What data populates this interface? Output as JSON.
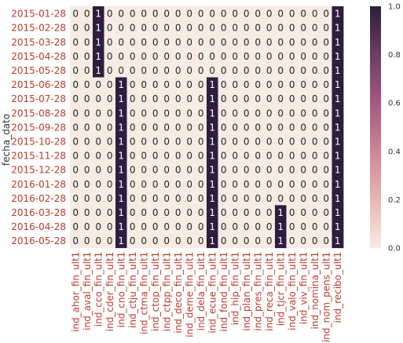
{
  "chart_data": {
    "type": "heatmap",
    "ylabel": "fecha_dato",
    "xlabel": "",
    "rows": [
      "2015-01-28",
      "2015-02-28",
      "2015-03-28",
      "2015-04-28",
      "2015-05-28",
      "2015-06-28",
      "2015-07-28",
      "2015-08-28",
      "2015-09-28",
      "2015-10-28",
      "2015-11-28",
      "2015-12-28",
      "2016-01-28",
      "2016-02-28",
      "2016-03-28",
      "2016-04-28",
      "2016-05-28"
    ],
    "columns": [
      "ind_ahor_fin_ult1",
      "ind_aval_fin_ult1",
      "ind_cco_fin_ult1",
      "ind_cder_fin_ult1",
      "ind_cno_fin_ult1",
      "ind_ctju_fin_ult1",
      "ind_ctma_fin_ult1",
      "ind_ctop_fin_ult1",
      "ind_ctpp_fin_ult1",
      "ind_deco_fin_ult1",
      "ind_deme_fin_ult1",
      "ind_dela_fin_ult1",
      "ind_ecue_fin_ult1",
      "ind_fond_fin_ult1",
      "ind_hip_fin_ult1",
      "ind_plan_fin_ult1",
      "ind_pres_fin_ult1",
      "ind_reca_fin_ult1",
      "ind_tjcr_fin_ult1",
      "ind_valo_fin_ult1",
      "ind_viv_fin_ult1",
      "ind_nomina_ult1",
      "ind_nom_pens_ult1",
      "ind_recibo_ult1"
    ],
    "values": [
      [
        0,
        0,
        1,
        0,
        0,
        0,
        0,
        0,
        0,
        0,
        0,
        0,
        0,
        0,
        0,
        0,
        0,
        0,
        0,
        0,
        0,
        0,
        0,
        1
      ],
      [
        0,
        0,
        1,
        0,
        0,
        0,
        0,
        0,
        0,
        0,
        0,
        0,
        0,
        0,
        0,
        0,
        0,
        0,
        0,
        0,
        0,
        0,
        0,
        1
      ],
      [
        0,
        0,
        1,
        0,
        0,
        0,
        0,
        0,
        0,
        0,
        0,
        0,
        0,
        0,
        0,
        0,
        0,
        0,
        0,
        0,
        0,
        0,
        0,
        1
      ],
      [
        0,
        0,
        1,
        0,
        0,
        0,
        0,
        0,
        0,
        0,
        0,
        0,
        0,
        0,
        0,
        0,
        0,
        0,
        0,
        0,
        0,
        0,
        0,
        1
      ],
      [
        0,
        0,
        1,
        0,
        0,
        0,
        0,
        0,
        0,
        0,
        0,
        0,
        0,
        0,
        0,
        0,
        0,
        0,
        0,
        0,
        0,
        0,
        0,
        1
      ],
      [
        0,
        0,
        0,
        0,
        1,
        0,
        0,
        0,
        0,
        0,
        0,
        0,
        1,
        0,
        0,
        0,
        0,
        0,
        0,
        0,
        0,
        0,
        0,
        1
      ],
      [
        0,
        0,
        0,
        0,
        1,
        0,
        0,
        0,
        0,
        0,
        0,
        0,
        1,
        0,
        0,
        0,
        0,
        0,
        0,
        0,
        0,
        0,
        0,
        1
      ],
      [
        0,
        0,
        0,
        0,
        1,
        0,
        0,
        0,
        0,
        0,
        0,
        0,
        1,
        0,
        0,
        0,
        0,
        0,
        0,
        0,
        0,
        0,
        0,
        1
      ],
      [
        0,
        0,
        0,
        0,
        1,
        0,
        0,
        0,
        0,
        0,
        0,
        0,
        1,
        0,
        0,
        0,
        0,
        0,
        0,
        0,
        0,
        0,
        0,
        1
      ],
      [
        0,
        0,
        0,
        0,
        1,
        0,
        0,
        0,
        0,
        0,
        0,
        0,
        1,
        0,
        0,
        0,
        0,
        0,
        0,
        0,
        0,
        0,
        0,
        1
      ],
      [
        0,
        0,
        0,
        0,
        1,
        0,
        0,
        0,
        0,
        0,
        0,
        0,
        1,
        0,
        0,
        0,
        0,
        0,
        0,
        0,
        0,
        0,
        0,
        1
      ],
      [
        0,
        0,
        0,
        0,
        1,
        0,
        0,
        0,
        0,
        0,
        0,
        0,
        1,
        0,
        0,
        0,
        0,
        0,
        0,
        0,
        0,
        0,
        0,
        1
      ],
      [
        0,
        0,
        0,
        0,
        1,
        0,
        0,
        0,
        0,
        0,
        0,
        0,
        1,
        0,
        0,
        0,
        0,
        0,
        0,
        0,
        0,
        0,
        0,
        1
      ],
      [
        0,
        0,
        0,
        0,
        1,
        0,
        0,
        0,
        0,
        0,
        0,
        0,
        1,
        0,
        0,
        0,
        0,
        0,
        0,
        0,
        0,
        0,
        0,
        1
      ],
      [
        0,
        0,
        0,
        0,
        1,
        0,
        0,
        0,
        0,
        0,
        0,
        0,
        1,
        0,
        0,
        0,
        0,
        0,
        1,
        0,
        0,
        0,
        0,
        1
      ],
      [
        0,
        0,
        0,
        0,
        1,
        0,
        0,
        0,
        0,
        0,
        0,
        0,
        1,
        0,
        0,
        0,
        0,
        0,
        1,
        0,
        0,
        0,
        0,
        1
      ],
      [
        0,
        0,
        0,
        0,
        1,
        0,
        0,
        0,
        0,
        0,
        0,
        0,
        1,
        0,
        0,
        0,
        0,
        0,
        1,
        0,
        0,
        0,
        0,
        1
      ]
    ],
    "colorbar": {
      "range": [
        0.0,
        1.0
      ],
      "ticks": [
        "0.0",
        "0.2",
        "0.4",
        "0.6",
        "0.8",
        "1.0"
      ],
      "low_color": "#f7ebe4",
      "high_color": "#2d1e3e"
    },
    "annotated": true,
    "grid": false,
    "label_color": "#c0392b"
  }
}
